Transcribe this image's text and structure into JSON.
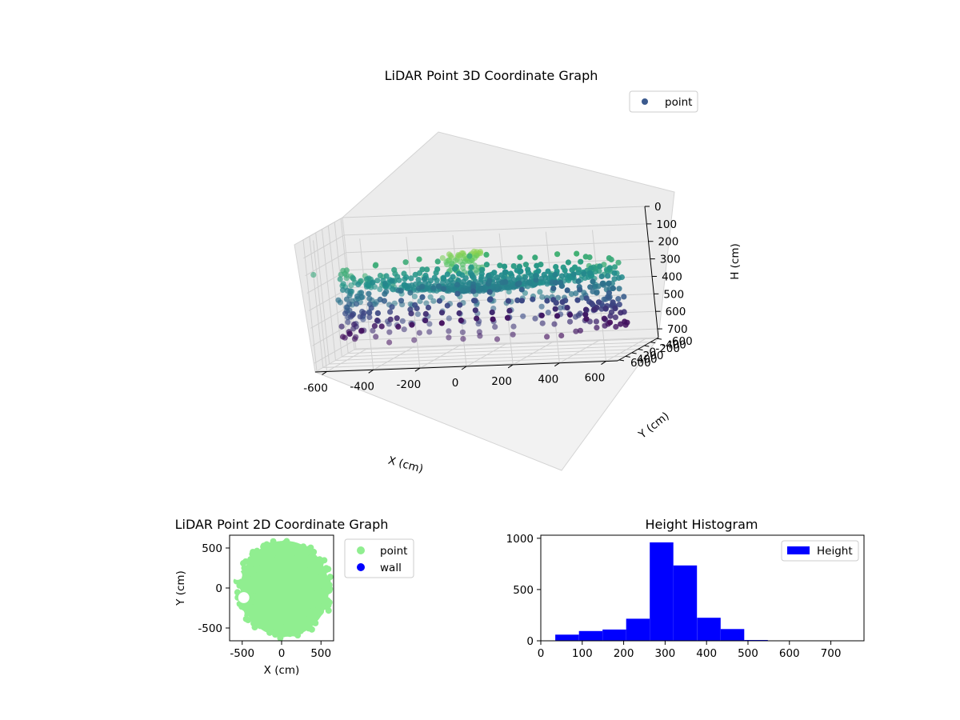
{
  "chart_data": [
    {
      "type": "scatter3d",
      "title": "LiDAR Point 3D Coordinate Graph",
      "xlabel": "X (cm)",
      "ylabel": "Y (cm)",
      "zlabel": "H (cm)",
      "xlim": [
        -650,
        650
      ],
      "ylim": [
        -650,
        650
      ],
      "zlim": [
        750,
        0
      ],
      "xticks": [
        -600,
        -400,
        -200,
        0,
        200,
        400,
        600
      ],
      "yticks": [
        -600,
        -400,
        -200,
        0,
        200,
        400,
        600
      ],
      "zticks": [
        0,
        100,
        200,
        300,
        400,
        500,
        600,
        700
      ],
      "legend": [
        "point"
      ],
      "legend_position": "top-right",
      "colormap": "viridis",
      "description": "Points arranged on rings at radii around 530-600 cm and several heights, with rays converging to a center near (0,0)."
    },
    {
      "type": "scatter",
      "title": "LiDAR Point 2D Coordinate Graph",
      "xlabel": "X (cm)",
      "ylabel": "Y (cm)",
      "xlim": [
        -660,
        660
      ],
      "ylim": [
        -660,
        660
      ],
      "xticks": [
        -500,
        0,
        500
      ],
      "yticks": [
        500,
        0,
        -500
      ],
      "series": [
        {
          "name": "point",
          "color": "#90ee90"
        },
        {
          "name": "wall",
          "color": "#0000ff"
        }
      ],
      "legend_position": "right-outside"
    },
    {
      "type": "bar",
      "title": "Height Histogram",
      "xlabel": "",
      "ylabel": "",
      "bin_edges": [
        35,
        92,
        149,
        206,
        263,
        320,
        377,
        434,
        491,
        548,
        605,
        662,
        719
      ],
      "values": [
        60,
        95,
        110,
        215,
        960,
        735,
        225,
        115,
        8,
        0,
        0,
        0
      ],
      "xlim": [
        0,
        780
      ],
      "ylim": [
        0,
        1030
      ],
      "xticks": [
        0,
        100,
        200,
        300,
        400,
        500,
        600,
        700
      ],
      "yticks": [
        0,
        500,
        1000
      ],
      "legend": [
        "Height"
      ],
      "color": "#0000ff",
      "legend_position": "top-right"
    }
  ]
}
